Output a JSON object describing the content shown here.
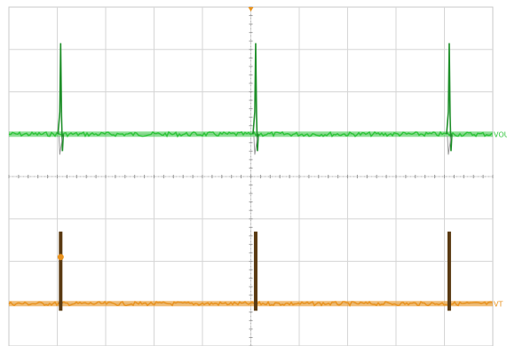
{
  "chart_data": {
    "type": "line",
    "grid": true,
    "xlim": [
      0,
      10
    ],
    "ylim": [
      -4,
      4
    ],
    "divisions": {
      "x": 10,
      "y": 8
    },
    "spike_times": [
      1.07,
      5.1,
      9.1
    ],
    "series": [
      {
        "name": "VOUT",
        "color": "#2ec43a",
        "baseline": 1.0,
        "spike_peak": 3.15,
        "spike_dip": 0.6
      },
      {
        "name": "VT",
        "color": "#e8921e",
        "pulse_color": "#5a3a12",
        "baseline": -3.0,
        "pulse_top": -1.3
      }
    ],
    "markers": [
      {
        "label": "VOUT",
        "series": "VOUT"
      },
      {
        "label": "VT",
        "series": "VT"
      }
    ],
    "trigger_color": "#e8921e",
    "ground_marker": {
      "series": "VT",
      "y": -1.9
    }
  }
}
